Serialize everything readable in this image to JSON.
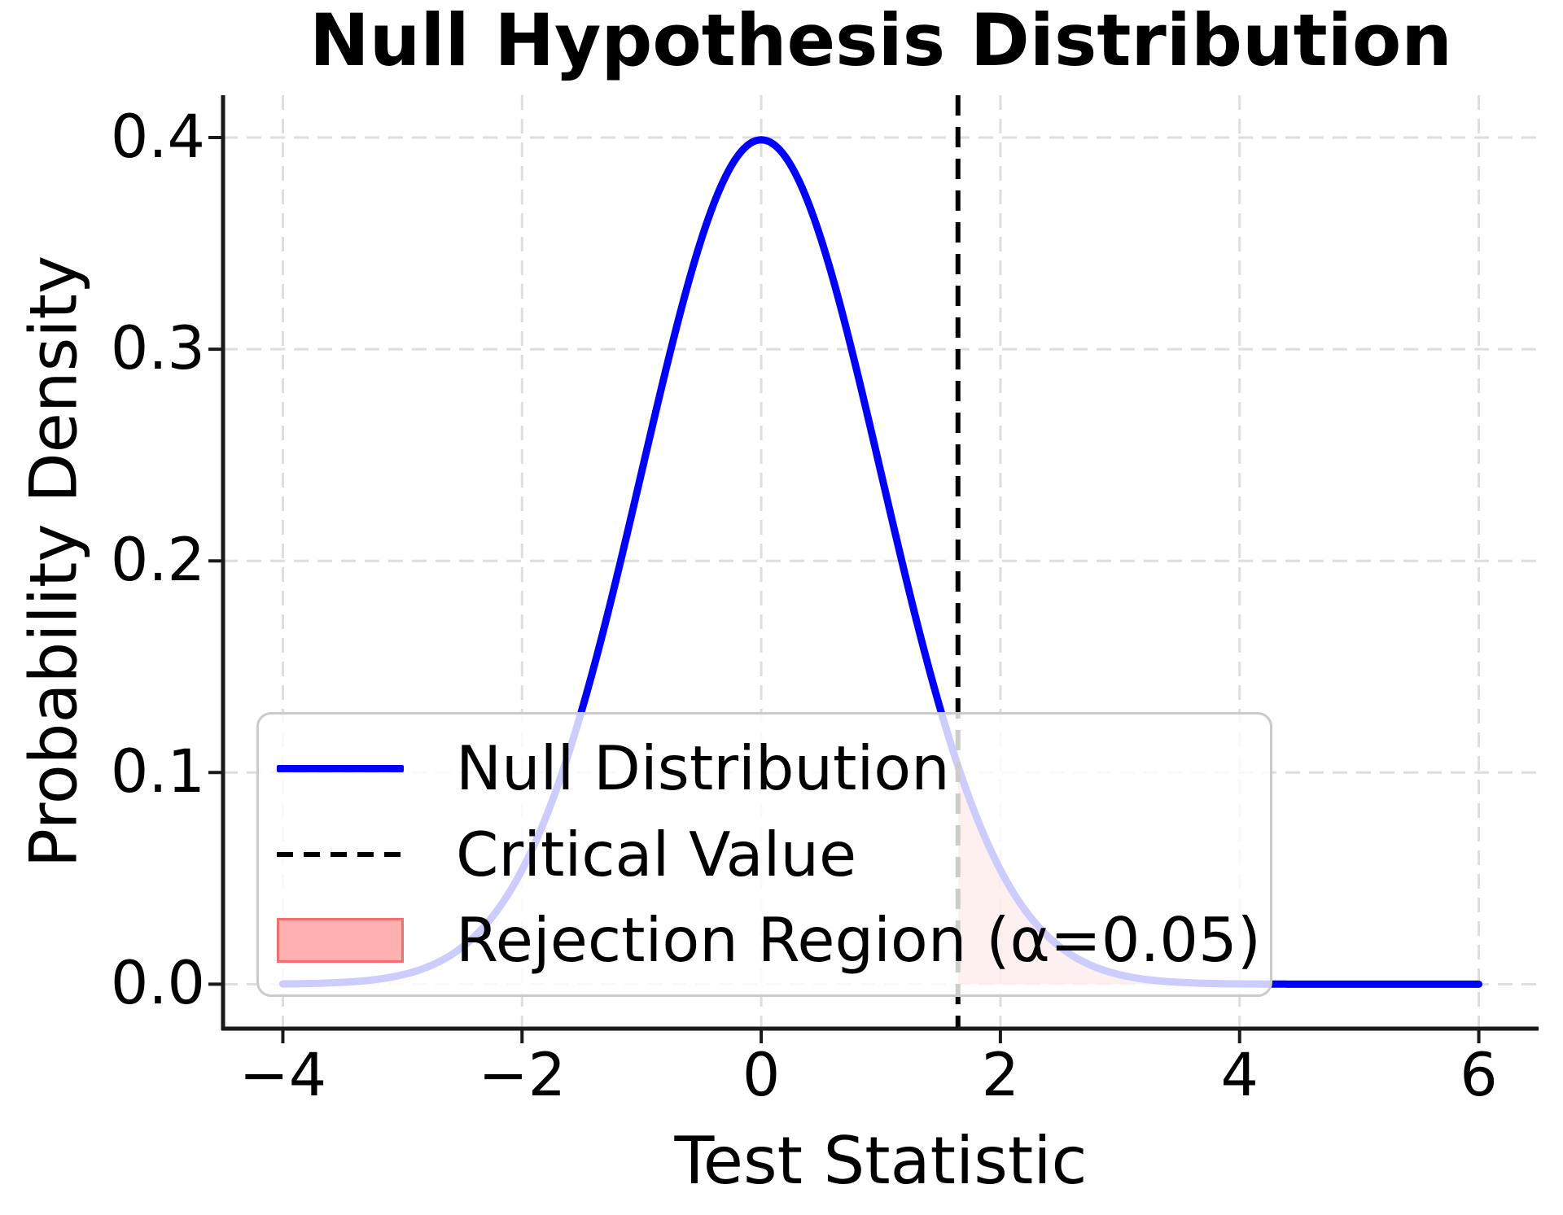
{
  "chart_data": {
    "type": "line",
    "title": "Null Hypothesis Distribution",
    "xlabel": "Test Statistic",
    "ylabel": "Probability Density",
    "xlim": [
      -4.5,
      6.5
    ],
    "ylim": [
      -0.021,
      0.42
    ],
    "grid": true,
    "x_ticks": [
      -4,
      -2,
      0,
      2,
      4,
      6
    ],
    "x_tick_labels": [
      "−4",
      "−2",
      "0",
      "2",
      "4",
      "6"
    ],
    "y_ticks": [
      0.0,
      0.1,
      0.2,
      0.3,
      0.4
    ],
    "y_tick_labels": [
      "0.0",
      "0.1",
      "0.2",
      "0.3",
      "0.4"
    ],
    "series": [
      {
        "name": "Null Distribution",
        "curve": "gaussian-pdf",
        "mean": 0,
        "sd": 1,
        "x_range": [
          -4,
          6
        ],
        "color": "#0000ff",
        "linewidth": 9,
        "sample_points": [
          [
            -4,
            0.0001
          ],
          [
            -3,
            0.0044
          ],
          [
            -2,
            0.054
          ],
          [
            -1.645,
            0.1031
          ],
          [
            -1,
            0.242
          ],
          [
            0,
            0.3989
          ],
          [
            1,
            0.242
          ],
          [
            1.645,
            0.1031
          ],
          [
            2,
            0.054
          ],
          [
            3,
            0.0044
          ],
          [
            4,
            0.0001
          ],
          [
            5,
            0.0
          ],
          [
            6,
            0.0
          ]
        ]
      }
    ],
    "critical_value": {
      "label": "Critical Value",
      "x": 1.645,
      "color": "#000000",
      "style": "dashed"
    },
    "rejection_region": {
      "label": "Rejection Region (α=0.05)",
      "alpha_level": 0.05,
      "from": 1.645,
      "to": 6,
      "fill_color": "#ff0000",
      "fill_opacity": 0.3
    },
    "legend": {
      "position": "lower left",
      "entries": [
        {
          "label": "Null Distribution",
          "handle": "line",
          "color": "#0000ff"
        },
        {
          "label": "Critical Value",
          "handle": "dashed-line",
          "color": "#000000"
        },
        {
          "label": "Rejection Region (α=0.05)",
          "handle": "patch",
          "color": "#ffb1b1",
          "edge_color": "#f56e6e"
        }
      ]
    },
    "style": {
      "grid_color": "#dedede",
      "spine_color": "#1a1a1a",
      "background": "#ffffff",
      "curve_color_behind_legend": "#ccccff"
    }
  }
}
